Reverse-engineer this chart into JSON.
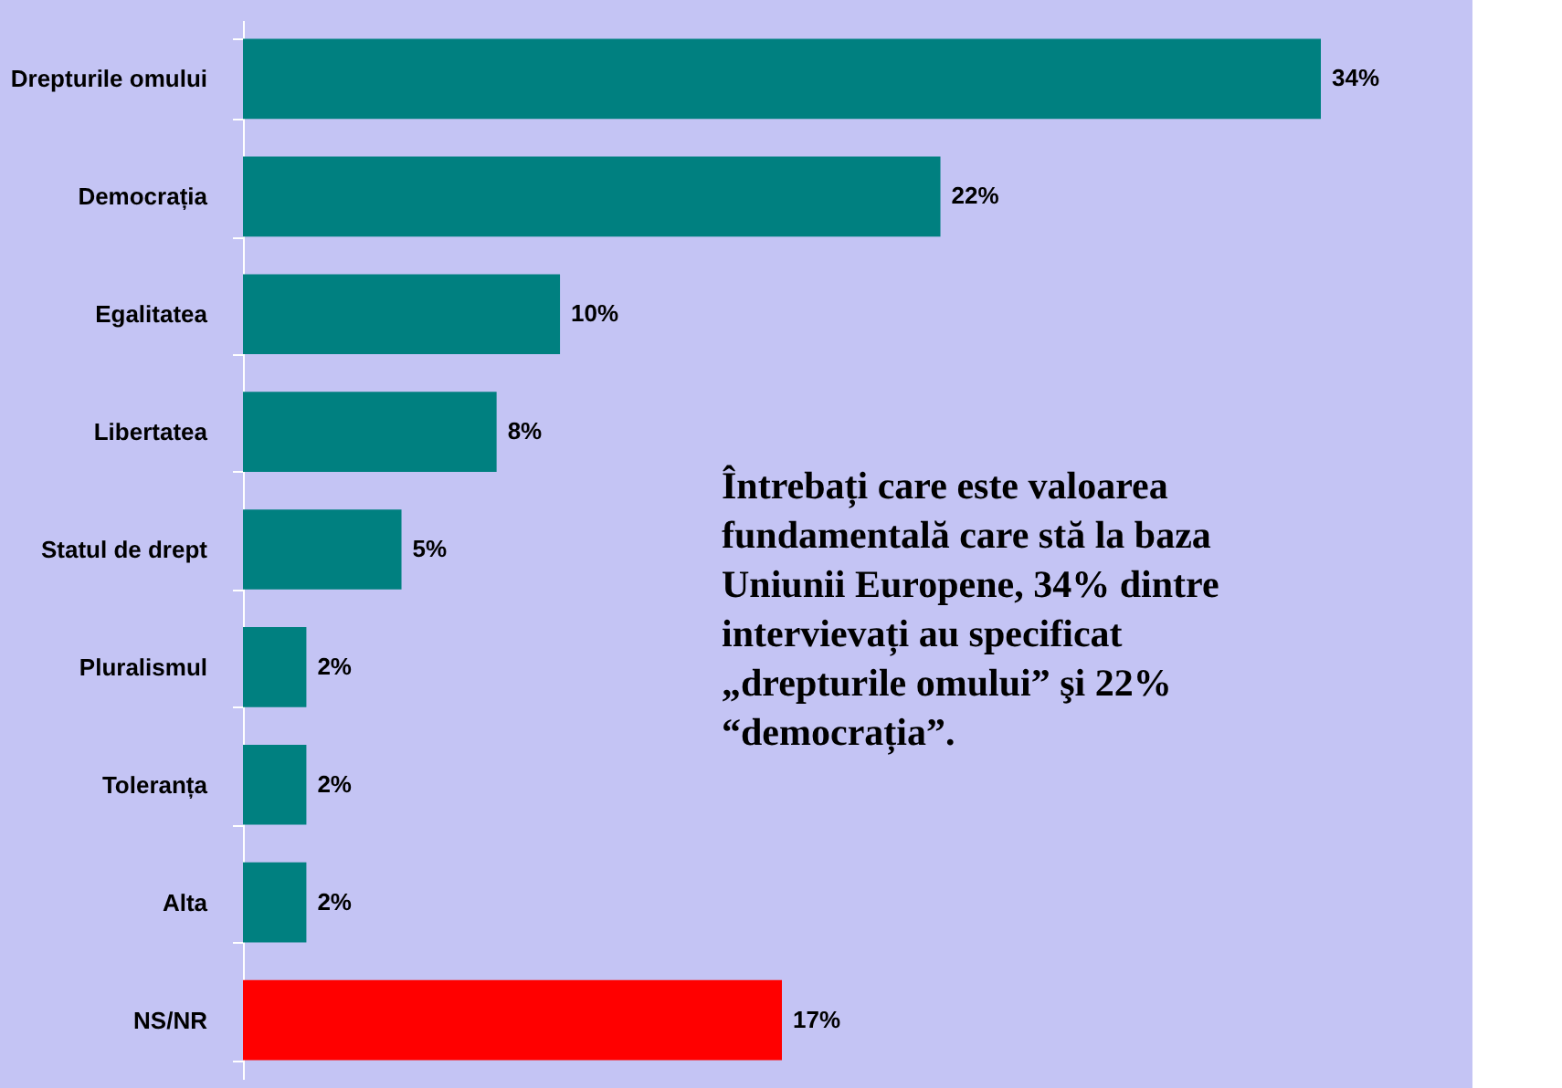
{
  "chart_data": {
    "type": "bar",
    "orientation": "horizontal",
    "categories": [
      "Drepturile omului",
      "Democrația",
      "Egalitatea",
      "Libertatea",
      "Statul de drept",
      "Pluralismul",
      "Toleranța",
      "Alta",
      "NS/NR"
    ],
    "values": [
      34,
      22,
      10,
      8,
      5,
      2,
      2,
      2,
      17
    ],
    "colors": [
      "#008080",
      "#008080",
      "#008080",
      "#008080",
      "#008080",
      "#008080",
      "#008080",
      "#008080",
      "#ff0000"
    ],
    "value_labels": [
      "34%",
      "22%",
      "10%",
      "8%",
      "5%",
      "2%",
      "2%",
      "2%",
      "17%"
    ],
    "grid": false,
    "annotations": [
      "Întrebați care este valoarea fundamentală care stă la baza Uniunii Europene, 34% dintre intervievați au specificat „drepturile omului” şi 22% “democrația”."
    ]
  }
}
